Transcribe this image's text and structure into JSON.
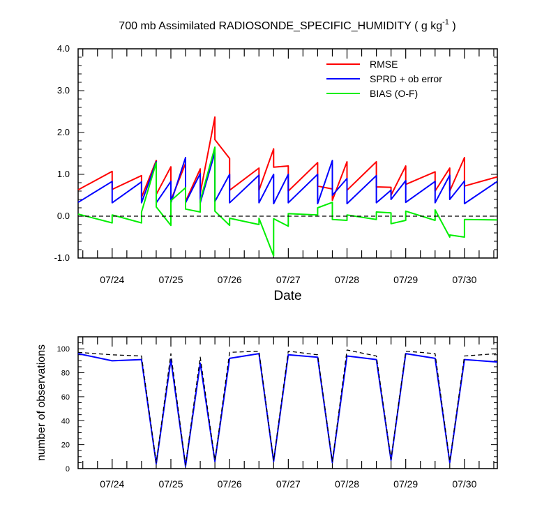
{
  "title_main": "700 mb Assimilated RADIOSONDE_SPECIFIC_HUMIDITY ( g kg",
  "title_sup": "-1",
  "title_end": " )",
  "chart_data": [
    {
      "type": "line",
      "name": "stats-panel",
      "title": "700 mb Assimilated RADIOSONDE_SPECIFIC_HUMIDITY ( g kg-1 )",
      "xlabel": "Date",
      "ylabel": "",
      "x_domain": [
        23.42,
        30.56
      ],
      "ylim": [
        -1.0,
        4.0
      ],
      "y_ticks": [
        {
          "value": -1.0,
          "label": "-1.0"
        },
        {
          "value": 0.0,
          "label": "0.0"
        },
        {
          "value": 1.0,
          "label": "1.0"
        },
        {
          "value": 2.0,
          "label": "2.0"
        },
        {
          "value": 3.0,
          "label": "3.0"
        },
        {
          "value": 4.0,
          "label": "4.0"
        }
      ],
      "x_ticks": [
        {
          "value": 24,
          "label": "07/24"
        },
        {
          "value": 25,
          "label": "07/25"
        },
        {
          "value": 26,
          "label": "07/26"
        },
        {
          "value": 27,
          "label": "07/27"
        },
        {
          "value": 28,
          "label": "07/28"
        },
        {
          "value": 29,
          "label": "07/29"
        },
        {
          "value": 30,
          "label": "07/30"
        }
      ],
      "legend": {
        "placement": "top-right",
        "entries": [
          "RMSE",
          "SPRD + ob error",
          "BIAS (O-F)"
        ]
      },
      "series": [
        {
          "name": "RMSE",
          "color": "#ff0000",
          "x": [
            23.42,
            24.0,
            24.0,
            24.5,
            24.5,
            24.75,
            24.75,
            25.0,
            25.0,
            25.25,
            25.25,
            25.5,
            25.5,
            25.75,
            25.75,
            26.0,
            26.0,
            26.5,
            26.5,
            26.75,
            26.75,
            27.0,
            27.0,
            27.5,
            27.5,
            27.75,
            27.75,
            28.0,
            28.0,
            28.5,
            28.5,
            28.75,
            28.75,
            29.0,
            29.0,
            29.5,
            29.5,
            29.75,
            29.75,
            30.0,
            30.0,
            30.56
          ],
          "values": [
            0.63,
            1.07,
            0.64,
            0.97,
            0.45,
            1.33,
            0.52,
            1.18,
            0.38,
            1.26,
            0.35,
            1.13,
            0.55,
            2.37,
            1.83,
            1.38,
            0.62,
            1.15,
            0.62,
            1.61,
            1.17,
            1.2,
            0.6,
            1.28,
            0.72,
            0.65,
            0.38,
            1.3,
            0.62,
            1.3,
            0.7,
            0.69,
            0.5,
            1.2,
            0.76,
            1.06,
            0.6,
            1.15,
            0.6,
            1.4,
            0.72,
            0.94
          ]
        },
        {
          "name": "SPRD + ob error",
          "color": "#0000ff",
          "x": [
            23.42,
            24.0,
            24.0,
            24.5,
            24.5,
            24.75,
            24.75,
            25.0,
            25.0,
            25.25,
            25.25,
            25.5,
            25.5,
            25.75,
            25.75,
            26.0,
            26.0,
            26.5,
            26.5,
            26.75,
            26.75,
            27.0,
            27.0,
            27.5,
            27.5,
            27.75,
            27.75,
            28.0,
            28.0,
            28.5,
            28.5,
            28.75,
            28.75,
            29.0,
            29.0,
            29.5,
            29.5,
            29.75,
            29.75,
            30.0,
            30.0,
            30.56
          ],
          "values": [
            0.33,
            0.83,
            0.32,
            0.82,
            0.32,
            1.3,
            0.32,
            0.83,
            0.32,
            1.4,
            0.32,
            1.02,
            0.32,
            1.52,
            0.35,
            1.0,
            0.32,
            0.98,
            0.32,
            1.0,
            0.3,
            1.0,
            0.32,
            1.0,
            0.3,
            1.33,
            0.5,
            0.9,
            0.3,
            0.97,
            0.32,
            0.62,
            0.4,
            0.85,
            0.33,
            0.83,
            0.32,
            0.98,
            0.4,
            0.84,
            0.3,
            0.83
          ]
        },
        {
          "name": "BIAS (O-F)",
          "color": "#00ee00",
          "x": [
            23.42,
            24.0,
            24.0,
            24.5,
            24.5,
            24.75,
            24.75,
            25.0,
            25.0,
            25.25,
            25.25,
            25.5,
            25.5,
            25.75,
            25.75,
            26.0,
            26.0,
            26.5,
            26.5,
            26.75,
            26.75,
            27.0,
            27.0,
            27.5,
            27.5,
            27.75,
            27.75,
            28.0,
            28.0,
            28.5,
            28.5,
            28.75,
            28.75,
            29.0,
            29.0,
            29.5,
            29.5,
            29.75,
            29.75,
            30.0,
            30.0,
            30.56
          ],
          "values": [
            0.05,
            -0.16,
            0.03,
            -0.16,
            0.1,
            1.28,
            0.22,
            -0.22,
            0.37,
            0.68,
            0.17,
            0.1,
            0.37,
            1.65,
            0.12,
            -0.22,
            -0.05,
            -0.2,
            -0.05,
            -0.95,
            -0.06,
            -0.24,
            0.06,
            0.03,
            0.2,
            0.33,
            -0.08,
            -0.1,
            0.03,
            -0.08,
            0.1,
            0.08,
            -0.18,
            -0.1,
            0.12,
            -0.1,
            0.15,
            -0.5,
            -0.45,
            -0.5,
            -0.08,
            -0.09
          ]
        },
        {
          "name": "zero-reference",
          "color": "#000000",
          "dashed": true,
          "x": [
            23.42,
            30.56
          ],
          "values": [
            0,
            0
          ]
        }
      ]
    },
    {
      "type": "line",
      "name": "count-panel",
      "xlabel": "",
      "ylabel": "number of observations",
      "x_domain": [
        23.42,
        30.56
      ],
      "ylim": [
        0,
        110
      ],
      "y_ticks": [
        {
          "value": 0,
          "label": "0"
        },
        {
          "value": 20,
          "label": "20"
        },
        {
          "value": 40,
          "label": "40"
        },
        {
          "value": 60,
          "label": "60"
        },
        {
          "value": 80,
          "label": "80"
        },
        {
          "value": 100,
          "label": "100"
        }
      ],
      "x_ticks": [
        {
          "value": 24,
          "label": "07/24"
        },
        {
          "value": 25,
          "label": "07/25"
        },
        {
          "value": 26,
          "label": "07/26"
        },
        {
          "value": 27,
          "label": "07/27"
        },
        {
          "value": 28,
          "label": "07/28"
        },
        {
          "value": 29,
          "label": "07/29"
        },
        {
          "value": 30,
          "label": "07/30"
        }
      ],
      "series": [
        {
          "name": "assimilated",
          "color": "#0000ff",
          "x": [
            23.42,
            24.0,
            24.5,
            24.75,
            25.0,
            25.25,
            25.5,
            25.75,
            26.0,
            26.5,
            26.75,
            27.0,
            27.5,
            27.75,
            28.0,
            28.5,
            28.75,
            29.0,
            29.5,
            29.75,
            30.0,
            30.56
          ],
          "values": [
            96,
            90,
            91,
            4,
            91,
            2,
            88,
            6,
            92,
            96,
            6,
            95,
            93,
            5,
            94,
            91,
            7,
            96,
            92,
            5,
            91,
            89
          ]
        },
        {
          "name": "possible",
          "color": "#000000",
          "dashed": true,
          "x": [
            23.42,
            24.0,
            24.5,
            24.75,
            25.0,
            25.25,
            25.5,
            25.75,
            26.0,
            26.5,
            26.75,
            27.0,
            27.5,
            27.75,
            28.0,
            28.5,
            28.75,
            29.0,
            29.5,
            29.75,
            30.0,
            30.56
          ],
          "values": [
            97,
            95,
            94,
            5,
            96,
            3,
            93,
            7,
            97,
            98,
            7,
            98,
            95,
            6,
            99,
            94,
            8,
            98,
            96,
            6,
            94,
            96
          ]
        }
      ]
    }
  ]
}
